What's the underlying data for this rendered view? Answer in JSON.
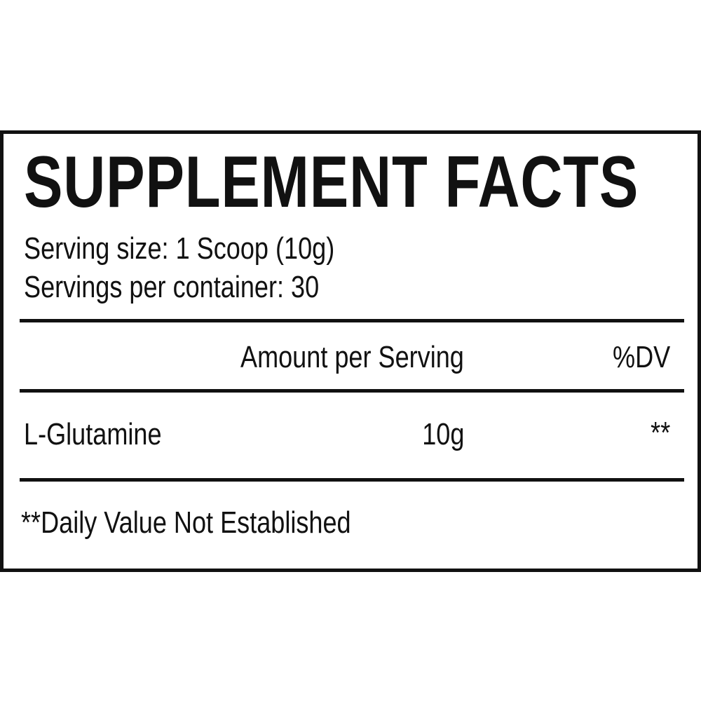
{
  "title": "SUPPLEMENT FACTS",
  "serving_size": "Serving size: 1 Scoop (10g)",
  "servings_per_container": "Servings per container: 30",
  "header": {
    "amount": "Amount per Serving",
    "dv": "%DV"
  },
  "rows": [
    {
      "name": "L-Glutamine",
      "amount": "10g",
      "dv": "**"
    }
  ],
  "footnote": "**Daily Value Not Established"
}
